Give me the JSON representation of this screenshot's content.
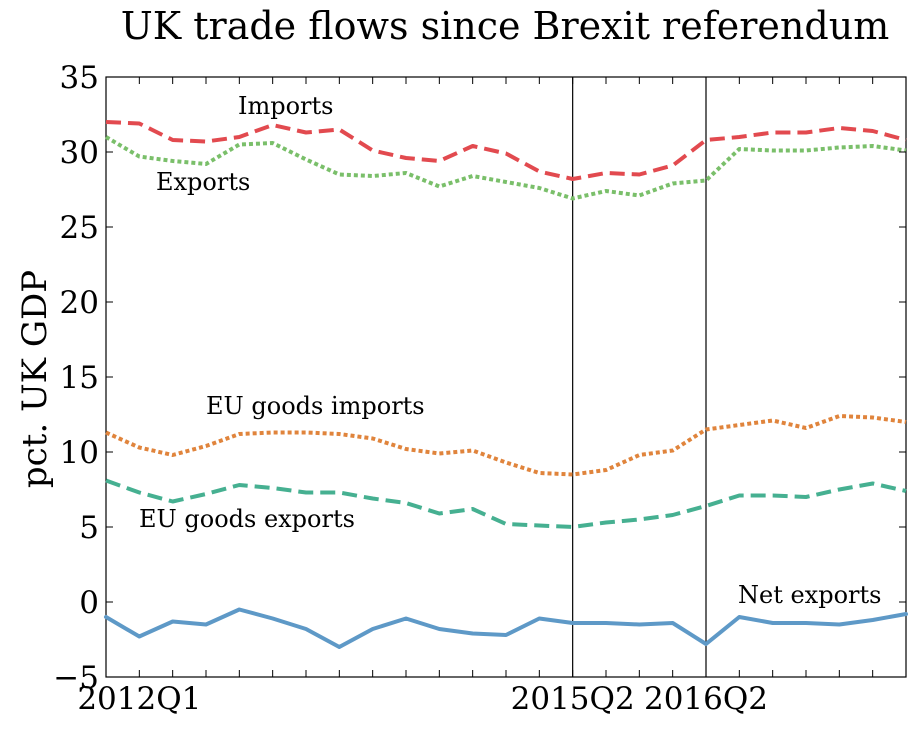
{
  "chart_data": {
    "type": "line",
    "title": "UK trade flows since Brexit referendum",
    "xlabel": "",
    "ylabel": "pct. UK GDP",
    "ylim": [
      -5,
      35
    ],
    "yticks": [
      "−5",
      "0",
      "5",
      "10",
      "15",
      "20",
      "25",
      "30",
      "35"
    ],
    "ytick_values": [
      -5,
      0,
      5,
      10,
      15,
      20,
      25,
      30,
      35
    ],
    "xticks": [
      {
        "label": "2012Q1",
        "index": 1
      },
      {
        "label": "2015Q2",
        "index": 14
      },
      {
        "label": "2016Q2",
        "index": 18
      }
    ],
    "vlines": [
      14,
      18
    ],
    "x_count": 25,
    "grid": false,
    "legend": "none",
    "annotations": [
      "Imports",
      "Exports",
      "EU goods imports",
      "EU goods exports",
      "Net exports"
    ],
    "series": [
      {
        "name": "Imports",
        "color": "#e24a4f",
        "style": "dashed",
        "values": [
          32.0,
          31.9,
          30.8,
          30.7,
          31.0,
          31.8,
          31.3,
          31.5,
          30.1,
          29.6,
          29.4,
          30.4,
          29.9,
          28.7,
          28.2,
          28.6,
          28.5,
          29.1,
          30.8,
          31.0,
          31.3,
          31.3,
          31.6,
          31.4,
          30.8
        ]
      },
      {
        "name": "Exports",
        "color": "#7abf6a",
        "style": "dotted",
        "values": [
          31.0,
          29.7,
          29.4,
          29.2,
          30.5,
          30.6,
          29.5,
          28.5,
          28.4,
          28.6,
          27.7,
          28.4,
          28.0,
          27.6,
          26.9,
          27.4,
          27.1,
          27.9,
          28.1,
          30.2,
          30.1,
          30.1,
          30.3,
          30.4,
          30.1
        ]
      },
      {
        "name": "EU goods imports",
        "color": "#e0843c",
        "style": "dotted",
        "values": [
          11.3,
          10.3,
          9.8,
          10.4,
          11.2,
          11.3,
          11.3,
          11.2,
          10.9,
          10.2,
          9.9,
          10.1,
          9.3,
          8.6,
          8.5,
          8.8,
          9.8,
          10.1,
          11.5,
          11.8,
          12.1,
          11.6,
          12.4,
          12.3,
          12.0
        ]
      },
      {
        "name": "EU goods exports",
        "color": "#46b091",
        "style": "dashed",
        "values": [
          8.1,
          7.3,
          6.7,
          7.2,
          7.8,
          7.6,
          7.3,
          7.3,
          6.9,
          6.6,
          5.9,
          6.2,
          5.2,
          5.1,
          5.0,
          5.3,
          5.5,
          5.8,
          6.4,
          7.1,
          7.1,
          7.0,
          7.5,
          7.9,
          7.4
        ]
      },
      {
        "name": "Net exports",
        "color": "#5e99c7",
        "style": "solid",
        "values": [
          -1.0,
          -2.3,
          -1.3,
          -1.5,
          -0.5,
          -1.1,
          -1.8,
          -3.0,
          -1.8,
          -1.1,
          -1.8,
          -2.1,
          -2.2,
          -1.1,
          -1.4,
          -1.4,
          -1.5,
          -1.4,
          -2.8,
          -1.0,
          -1.4,
          -1.4,
          -1.5,
          -1.2,
          -0.8
        ]
      }
    ]
  }
}
